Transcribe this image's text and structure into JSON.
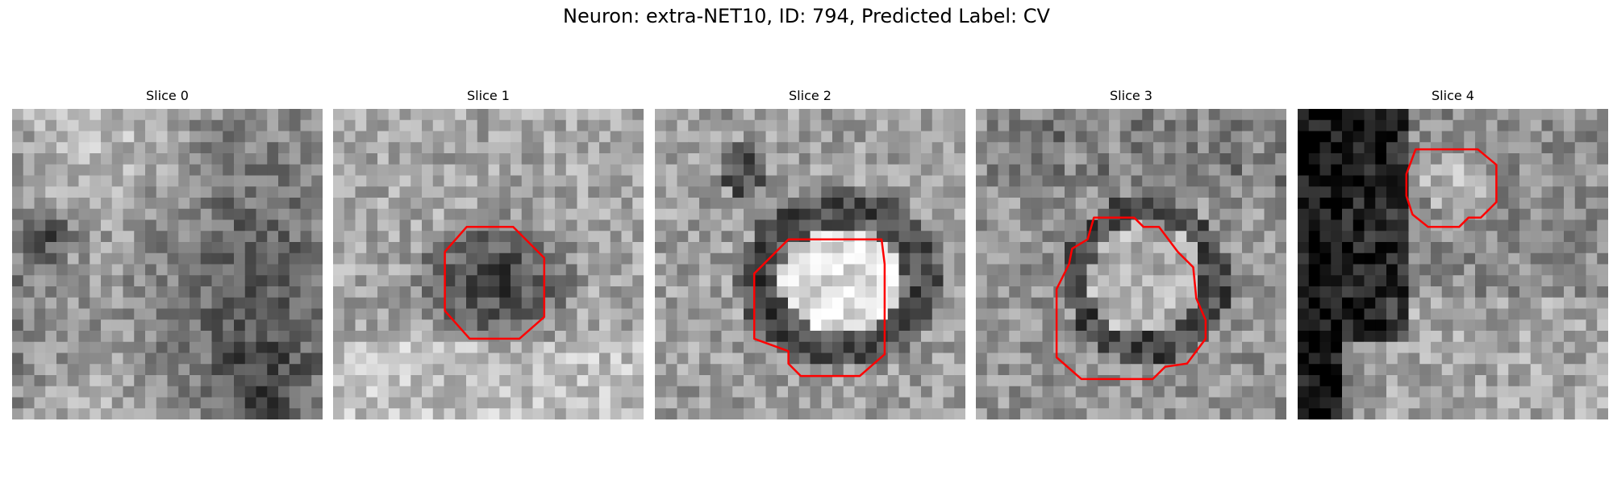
{
  "figure": {
    "suptitle": "Neuron: extra-NET10, ID: 794, Predicted Label: CV",
    "contour_color": "#ff0000",
    "colormap": "gray",
    "panels": [
      {
        "title": "Slice 0",
        "has_contour": false
      },
      {
        "title": "Slice 1",
        "has_contour": true
      },
      {
        "title": "Slice 2",
        "has_contour": true
      },
      {
        "title": "Slice 3",
        "has_contour": true
      },
      {
        "title": "Slice 4",
        "has_contour": true
      }
    ]
  }
}
